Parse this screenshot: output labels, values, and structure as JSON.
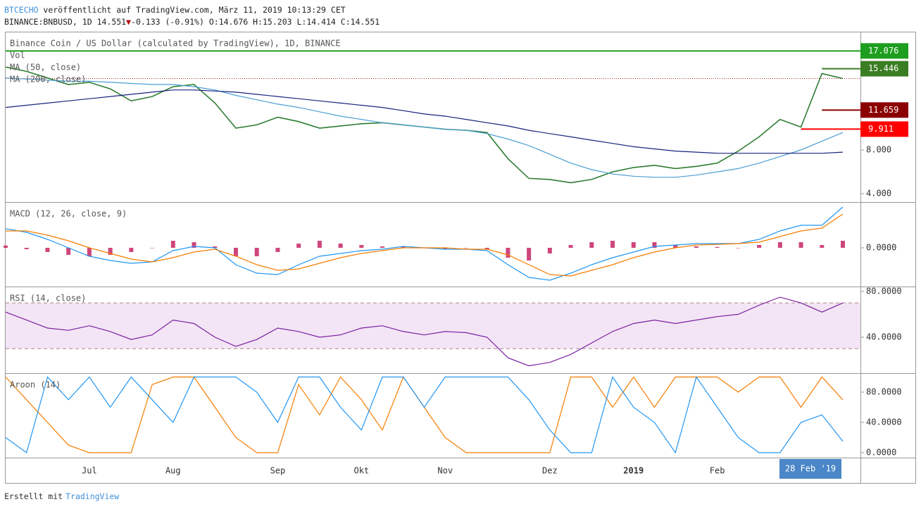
{
  "header": {
    "author": "BTCECHO",
    "published": "veröffentlicht auf TradingView.com, März 11, 2019 10:13:29 CET",
    "symbol": "BINANCE:BNBUSD, 1D",
    "price": "14.551",
    "arrow": "▼",
    "change": "-0.133 (-0.91%)",
    "ohlc": "O:14.676 H:15.203 L:14.414 C:14.551"
  },
  "footer": {
    "made_with": "Erstellt mit",
    "brand": "TradingView"
  },
  "x_axis": {
    "categories": [
      null,
      null,
      null,
      null,
      "Jul",
      null,
      null,
      null,
      "Aug",
      null,
      null,
      null,
      null,
      "Sep",
      null,
      null,
      null,
      "Okt",
      null,
      null,
      null,
      "Nov",
      null,
      null,
      null,
      null,
      "Dez",
      null,
      null,
      null,
      "2019",
      null,
      null,
      null,
      "Feb",
      null,
      null,
      null,
      null,
      null,
      null
    ],
    "highlight": "28 Feb '19"
  },
  "chart_data": [
    {
      "type": "line",
      "title": "Binance Coin / US Dollar (calculated by TradingView), 1D, BINANCE",
      "indicators": [
        "Vol",
        "MA (50, close)",
        "MA (200, close)"
      ],
      "ylim": [
        3.23,
        18.71
      ],
      "yticks": [
        {
          "value": 4,
          "label": "4.000"
        },
        {
          "value": 8,
          "label": "8.000"
        }
      ],
      "last": 14.551,
      "last_color": "#b71c1c",
      "price_labels": [
        {
          "value": 17.076,
          "color": "#1e9e1e",
          "line_start": 0
        },
        {
          "value": 15.446,
          "color": "#3b7d23",
          "line_start": 39
        },
        {
          "value": 11.659,
          "color": "#8b0000",
          "line_start": 39
        },
        {
          "value": 9.911,
          "color": "#ff0000",
          "line_start": 38
        }
      ],
      "series": [
        {
          "color": "#2e7d32",
          "values": [
            15.6,
            15.2,
            14.6,
            14.0,
            14.2,
            13.6,
            12.5,
            12.9,
            13.8,
            14.0,
            12.3,
            10.0,
            10.3,
            11.0,
            10.6,
            10.0,
            10.2,
            10.4,
            10.5,
            10.3,
            10.1,
            9.9,
            9.8,
            9.6,
            7.2,
            5.4,
            5.3,
            5.0,
            5.3,
            6.0,
            6.4,
            6.6,
            6.3,
            6.5,
            6.8,
            7.9,
            9.2,
            10.8,
            10.1,
            15.0,
            14.551
          ]
        },
        {
          "color": "#4a9fd5",
          "values": [
            14.6,
            14.5,
            14.4,
            14.3,
            14.3,
            14.2,
            14.1,
            14.0,
            14.0,
            13.8,
            13.5,
            13.0,
            12.6,
            12.2,
            11.9,
            11.5,
            11.1,
            10.8,
            10.5,
            10.3,
            10.1,
            9.9,
            9.8,
            9.5,
            9.0,
            8.4,
            7.6,
            6.8,
            6.2,
            5.8,
            5.6,
            5.5,
            5.5,
            5.7,
            6.0,
            6.3,
            6.8,
            7.4,
            8.0,
            8.8,
            9.6
          ]
        },
        {
          "color": "#1a237e",
          "values": [
            11.9,
            12.1,
            12.3,
            12.5,
            12.7,
            12.9,
            13.1,
            13.3,
            13.5,
            13.5,
            13.4,
            13.3,
            13.1,
            12.9,
            12.7,
            12.5,
            12.3,
            12.1,
            11.9,
            11.6,
            11.3,
            11.1,
            10.8,
            10.5,
            10.2,
            9.8,
            9.5,
            9.2,
            8.9,
            8.6,
            8.3,
            8.1,
            7.9,
            7.8,
            7.7,
            7.7,
            7.7,
            7.7,
            7.7,
            7.7,
            7.8
          ]
        }
      ]
    },
    {
      "type": "line",
      "title": "MACD (12, 26, close, 9)",
      "ylim": [
        -1.375,
        1.6
      ],
      "yticks": [
        {
          "value": 0,
          "label": "0.0000"
        }
      ],
      "series": [
        {
          "color": "#c2185b",
          "kind": "histogram",
          "values": [
            0.08,
            -0.05,
            -0.15,
            -0.25,
            -0.3,
            -0.25,
            -0.15,
            0,
            0.25,
            0.2,
            0.05,
            -0.3,
            -0.3,
            -0.15,
            0.15,
            0.25,
            0.15,
            0.1,
            0.05,
            0.05,
            0,
            -0.05,
            0,
            -0.05,
            -0.35,
            -0.45,
            -0.2,
            0.1,
            0.2,
            0.25,
            0.2,
            0.2,
            0.1,
            0.05,
            0.03,
            0,
            0.1,
            0.2,
            0.2,
            0.1,
            0.25
          ]
        },
        {
          "color": "#2196f3",
          "values": [
            0.68,
            0.55,
            0.3,
            0,
            -0.3,
            -0.45,
            -0.55,
            -0.5,
            -0.1,
            0.05,
            0,
            -0.6,
            -0.9,
            -0.95,
            -0.6,
            -0.3,
            -0.2,
            -0.1,
            -0.05,
            0.05,
            0,
            -0.05,
            -0.05,
            -0.1,
            -0.6,
            -1.05,
            -1.15,
            -0.9,
            -0.6,
            -0.35,
            -0.15,
            0.05,
            0.1,
            0.15,
            0.15,
            0.15,
            0.3,
            0.6,
            0.8,
            0.8,
            1.45
          ]
        },
        {
          "color": "#f57c00",
          "values": [
            0.6,
            0.6,
            0.45,
            0.25,
            0,
            -0.2,
            -0.4,
            -0.5,
            -0.35,
            -0.15,
            -0.05,
            -0.3,
            -0.6,
            -0.8,
            -0.75,
            -0.55,
            -0.35,
            -0.2,
            -0.1,
            0,
            0,
            0,
            -0.05,
            -0.05,
            -0.25,
            -0.6,
            -0.95,
            -1.0,
            -0.8,
            -0.6,
            -0.35,
            -0.15,
            0,
            0.1,
            0.12,
            0.15,
            0.2,
            0.4,
            0.6,
            0.7,
            1.2
          ]
        }
      ]
    },
    {
      "type": "line",
      "title": "RSI (14, close)",
      "ylim": [
        8.6,
        83.7
      ],
      "yticks": [
        {
          "value": 40,
          "label": "40.0000"
        },
        {
          "value": 80,
          "label": "80.0000"
        }
      ],
      "bands": [
        30,
        70
      ],
      "band_color": "#f3e5f5",
      "series": [
        {
          "color": "#7b1fa2",
          "values": [
            62,
            55,
            48,
            46,
            50,
            45,
            38,
            42,
            55,
            52,
            40,
            32,
            38,
            48,
            45,
            40,
            42,
            48,
            50,
            45,
            42,
            45,
            44,
            40,
            22,
            15,
            18,
            25,
            35,
            45,
            52,
            55,
            52,
            55,
            58,
            60,
            68,
            75,
            70,
            62,
            70
          ]
        }
      ]
    },
    {
      "type": "line",
      "title": "Aroon (14)",
      "ylim": [
        -6.5,
        104.2
      ],
      "yticks": [
        {
          "value": 0,
          "label": "0.0000"
        },
        {
          "value": 40,
          "label": "40.0000"
        },
        {
          "value": 80,
          "label": "80.0000"
        }
      ],
      "series": [
        {
          "color": "#f57c00",
          "values": [
            100,
            70,
            40,
            10,
            0,
            0,
            0,
            90,
            100,
            100,
            60,
            20,
            0,
            0,
            90,
            50,
            100,
            70,
            30,
            100,
            60,
            20,
            0,
            0,
            0,
            0,
            0,
            100,
            100,
            60,
            100,
            60,
            100,
            100,
            100,
            80,
            100,
            100,
            60,
            100,
            70
          ]
        },
        {
          "color": "#2196f3",
          "values": [
            20,
            0,
            100,
            70,
            100,
            60,
            100,
            70,
            40,
            100,
            100,
            100,
            80,
            40,
            100,
            100,
            60,
            30,
            100,
            100,
            60,
            100,
            100,
            100,
            100,
            70,
            30,
            0,
            0,
            100,
            60,
            40,
            0,
            100,
            60,
            20,
            0,
            0,
            40,
            50,
            15
          ]
        }
      ]
    }
  ]
}
